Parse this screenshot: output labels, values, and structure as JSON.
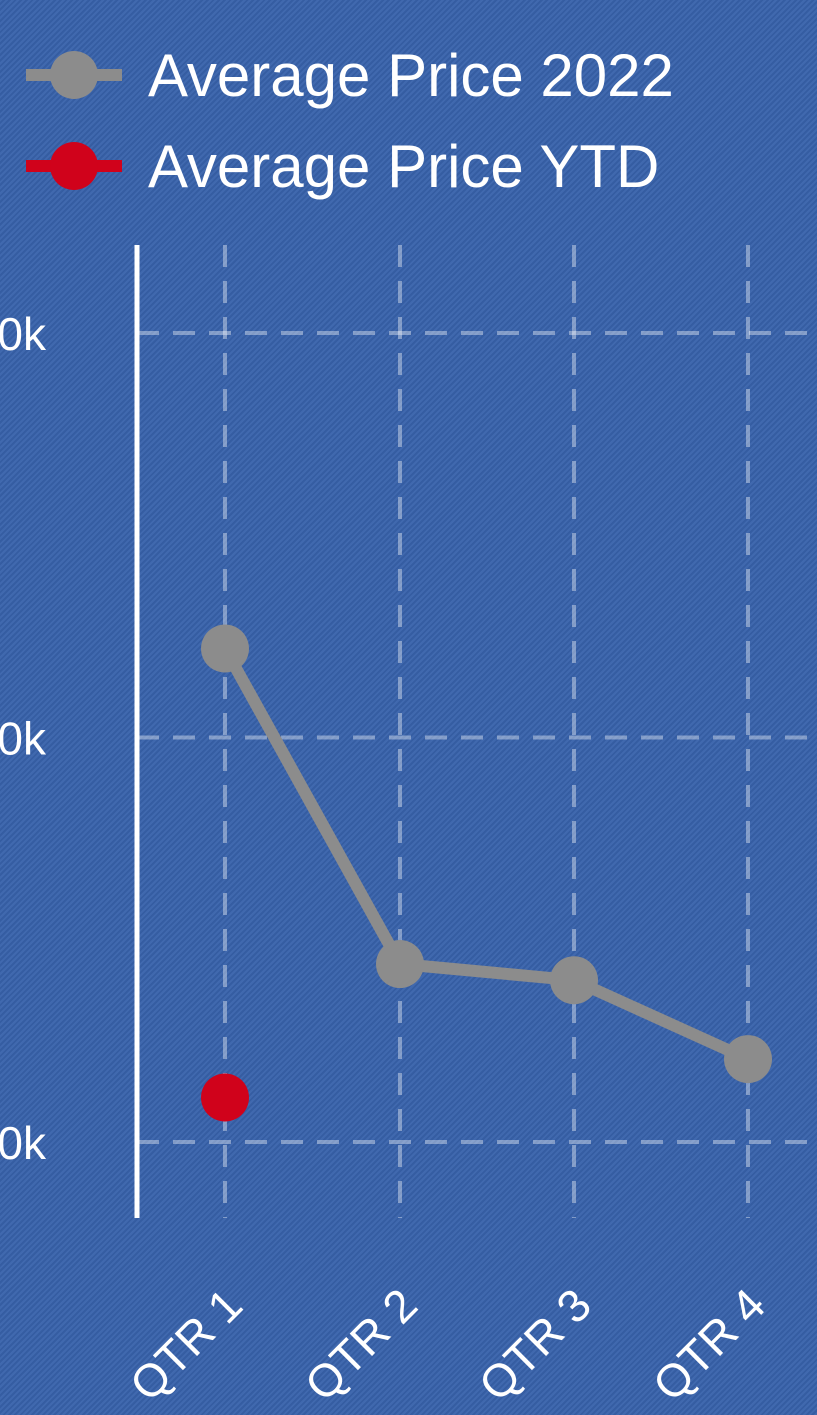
{
  "chart_data": {
    "type": "line",
    "categories": [
      "QTR 1",
      "QTR 2",
      "QTR 3",
      "QTR 4"
    ],
    "series": [
      {
        "name": "Average Price 2022",
        "values": [
          522,
          444,
          440,
          420.5
        ],
        "color": "#8c8c8c"
      },
      {
        "name": "Average Price YTD",
        "values": [
          411,
          null,
          null,
          null
        ],
        "color": "#d0021b"
      }
    ],
    "y_tick_labels": [
      "0k",
      "0k",
      "0k"
    ],
    "y_tick_values": [
      400,
      500,
      600
    ],
    "ylim": [
      381,
      620
    ],
    "grid": true,
    "legend_position": "top-left",
    "title": "",
    "xlabel": "",
    "ylabel": ""
  }
}
